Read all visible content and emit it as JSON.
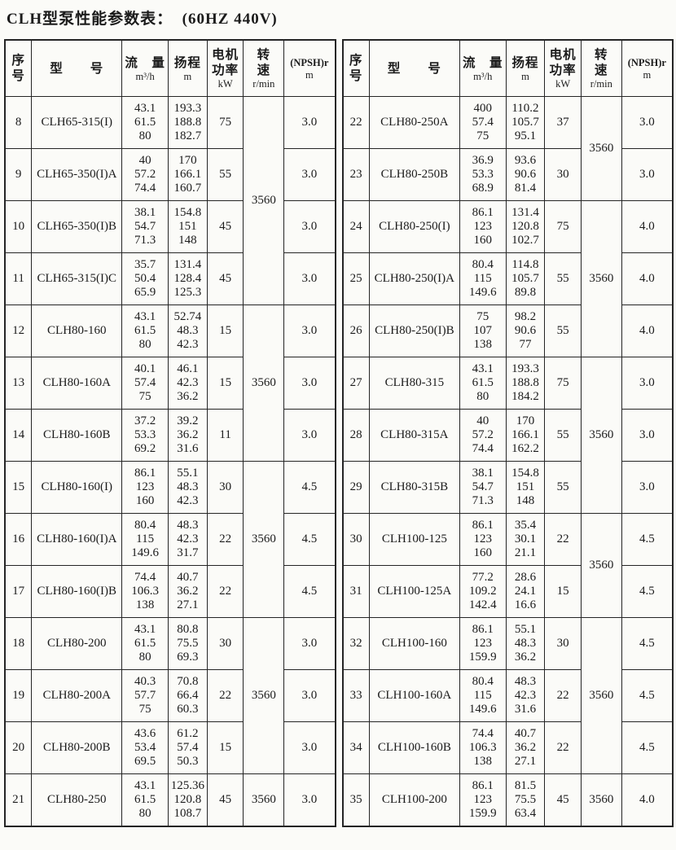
{
  "title": "CLH型泵性能参数表：  (60HZ 440V)",
  "header": {
    "no": {
      "label": [
        "序",
        "号"
      ]
    },
    "model": {
      "label": "型　　号"
    },
    "flow": {
      "label": "流　量",
      "unit": "m³/h"
    },
    "head": {
      "label": "扬程",
      "unit": "m"
    },
    "power": {
      "label": [
        "电机",
        "功率"
      ],
      "unit": "kW"
    },
    "speed": {
      "label": "转　速",
      "unit": "r/min"
    },
    "npsh": {
      "label": "(NPSH)r",
      "unit": "m"
    }
  },
  "left": {
    "rows": [
      {
        "no": "8",
        "model": "CLH65-315(I)",
        "flow": [
          "43.1",
          "61.5",
          "80"
        ],
        "head": [
          "193.3",
          "188.8",
          "182.7"
        ],
        "power": "75",
        "npsh": "3.0"
      },
      {
        "no": "9",
        "model": "CLH65-350(I)A",
        "flow": [
          "40",
          "57.2",
          "74.4"
        ],
        "head": [
          "170",
          "166.1",
          "160.7"
        ],
        "power": "55",
        "npsh": "3.0"
      },
      {
        "no": "10",
        "model": "CLH65-350(I)B",
        "flow": [
          "38.1",
          "54.7",
          "71.3"
        ],
        "head": [
          "154.8",
          "151",
          "148"
        ],
        "power": "45",
        "npsh": "3.0"
      },
      {
        "no": "11",
        "model": "CLH65-315(I)C",
        "flow": [
          "35.7",
          "50.4",
          "65.9"
        ],
        "head": [
          "131.4",
          "128.4",
          "125.3"
        ],
        "power": "45",
        "npsh": "3.0"
      },
      {
        "no": "12",
        "model": "CLH80-160",
        "flow": [
          "43.1",
          "61.5",
          "80"
        ],
        "head": [
          "52.74",
          "48.3",
          "42.3"
        ],
        "power": "15",
        "npsh": "3.0"
      },
      {
        "no": "13",
        "model": "CLH80-160A",
        "flow": [
          "40.1",
          "57.4",
          "75"
        ],
        "head": [
          "46.1",
          "42.3",
          "36.2"
        ],
        "power": "15",
        "npsh": "3.0"
      },
      {
        "no": "14",
        "model": "CLH80-160B",
        "flow": [
          "37.2",
          "53.3",
          "69.2"
        ],
        "head": [
          "39.2",
          "36.2",
          "31.6"
        ],
        "power": "11",
        "npsh": "3.0"
      },
      {
        "no": "15",
        "model": "CLH80-160(I)",
        "flow": [
          "86.1",
          "123",
          "160"
        ],
        "head": [
          "55.1",
          "48.3",
          "42.3"
        ],
        "power": "30",
        "npsh": "4.5"
      },
      {
        "no": "16",
        "model": "CLH80-160(I)A",
        "flow": [
          "80.4",
          "115",
          "149.6"
        ],
        "head": [
          "48.3",
          "42.3",
          "31.7"
        ],
        "power": "22",
        "npsh": "4.5"
      },
      {
        "no": "17",
        "model": "CLH80-160(I)B",
        "flow": [
          "74.4",
          "106.3",
          "138"
        ],
        "head": [
          "40.7",
          "36.2",
          "27.1"
        ],
        "power": "22",
        "npsh": "4.5"
      },
      {
        "no": "18",
        "model": "CLH80-200",
        "flow": [
          "43.1",
          "61.5",
          "80"
        ],
        "head": [
          "80.8",
          "75.5",
          "69.3"
        ],
        "power": "30",
        "npsh": "3.0"
      },
      {
        "no": "19",
        "model": "CLH80-200A",
        "flow": [
          "40.3",
          "57.7",
          "75"
        ],
        "head": [
          "70.8",
          "66.4",
          "60.3"
        ],
        "power": "22",
        "npsh": "3.0"
      },
      {
        "no": "20",
        "model": "CLH80-200B",
        "flow": [
          "43.6",
          "53.4",
          "69.5"
        ],
        "head": [
          "61.2",
          "57.4",
          "50.3"
        ],
        "power": "15",
        "npsh": "3.0"
      },
      {
        "no": "21",
        "model": "CLH80-250",
        "flow": [
          "43.1",
          "61.5",
          "80"
        ],
        "head": [
          "125.36",
          "120.8",
          "108.7"
        ],
        "power": "45",
        "npsh": "3.0"
      }
    ],
    "speed_blocks": [
      {
        "value": "3560",
        "rows": "8-11"
      },
      {
        "value": "3560",
        "rows": "12-14"
      },
      {
        "value": "3560",
        "rows": "15-17"
      },
      {
        "value": "3560",
        "rows": "18-20"
      },
      {
        "value": "3560",
        "rows": "21"
      }
    ]
  },
  "right": {
    "rows": [
      {
        "no": "22",
        "model": "CLH80-250A",
        "flow": [
          "400",
          "57.4",
          "75"
        ],
        "head": [
          "110.2",
          "105.7",
          "95.1"
        ],
        "power": "37",
        "npsh": "3.0"
      },
      {
        "no": "23",
        "model": "CLH80-250B",
        "flow": [
          "36.9",
          "53.3",
          "68.9"
        ],
        "head": [
          "93.6",
          "90.6",
          "81.4"
        ],
        "power": "30",
        "npsh": "3.0"
      },
      {
        "no": "24",
        "model": "CLH80-250(I)",
        "flow": [
          "86.1",
          "123",
          "160"
        ],
        "head": [
          "131.4",
          "120.8",
          "102.7"
        ],
        "power": "75",
        "npsh": "4.0"
      },
      {
        "no": "25",
        "model": "CLH80-250(I)A",
        "flow": [
          "80.4",
          "115",
          "149.6"
        ],
        "head": [
          "114.8",
          "105.7",
          "89.8"
        ],
        "power": "55",
        "npsh": "4.0"
      },
      {
        "no": "26",
        "model": "CLH80-250(I)B",
        "flow": [
          "75",
          "107",
          "138"
        ],
        "head": [
          "98.2",
          "90.6",
          "77"
        ],
        "power": "55",
        "npsh": "4.0"
      },
      {
        "no": "27",
        "model": "CLH80-315",
        "flow": [
          "43.1",
          "61.5",
          "80"
        ],
        "head": [
          "193.3",
          "188.8",
          "184.2"
        ],
        "power": "75",
        "npsh": "3.0"
      },
      {
        "no": "28",
        "model": "CLH80-315A",
        "flow": [
          "40",
          "57.2",
          "74.4"
        ],
        "head": [
          "170",
          "166.1",
          "162.2"
        ],
        "power": "55",
        "npsh": "3.0"
      },
      {
        "no": "29",
        "model": "CLH80-315B",
        "flow": [
          "38.1",
          "54.7",
          "71.3"
        ],
        "head": [
          "154.8",
          "151",
          "148"
        ],
        "power": "55",
        "npsh": "3.0"
      },
      {
        "no": "30",
        "model": "CLH100-125",
        "flow": [
          "86.1",
          "123",
          "160"
        ],
        "head": [
          "35.4",
          "30.1",
          "21.1"
        ],
        "power": "22",
        "npsh": "4.5"
      },
      {
        "no": "31",
        "model": "CLH100-125A",
        "flow": [
          "77.2",
          "109.2",
          "142.4"
        ],
        "head": [
          "28.6",
          "24.1",
          "16.6"
        ],
        "power": "15",
        "npsh": "4.5"
      },
      {
        "no": "32",
        "model": "CLH100-160",
        "flow": [
          "86.1",
          "123",
          "159.9"
        ],
        "head": [
          "55.1",
          "48.3",
          "36.2"
        ],
        "power": "30",
        "npsh": "4.5"
      },
      {
        "no": "33",
        "model": "CLH100-160A",
        "flow": [
          "80.4",
          "115",
          "149.6"
        ],
        "head": [
          "48.3",
          "42.3",
          "31.6"
        ],
        "power": "22",
        "npsh": "4.5"
      },
      {
        "no": "34",
        "model": "CLH100-160B",
        "flow": [
          "74.4",
          "106.3",
          "138"
        ],
        "head": [
          "40.7",
          "36.2",
          "27.1"
        ],
        "power": "22",
        "npsh": "4.5"
      },
      {
        "no": "35",
        "model": "CLH100-200",
        "flow": [
          "86.1",
          "123",
          "159.9"
        ],
        "head": [
          "81.5",
          "75.5",
          "63.4"
        ],
        "power": "45",
        "npsh": "4.0"
      }
    ],
    "speed_blocks": [
      {
        "value": "3560",
        "rows": "22-23"
      },
      {
        "value": "3560",
        "rows": "24-26"
      },
      {
        "value": "3560",
        "rows": "27-29"
      },
      {
        "value": "3560",
        "rows": "30-31"
      },
      {
        "value": "3560",
        "rows": "32-34"
      },
      {
        "value": "3560",
        "rows": "35"
      }
    ]
  }
}
